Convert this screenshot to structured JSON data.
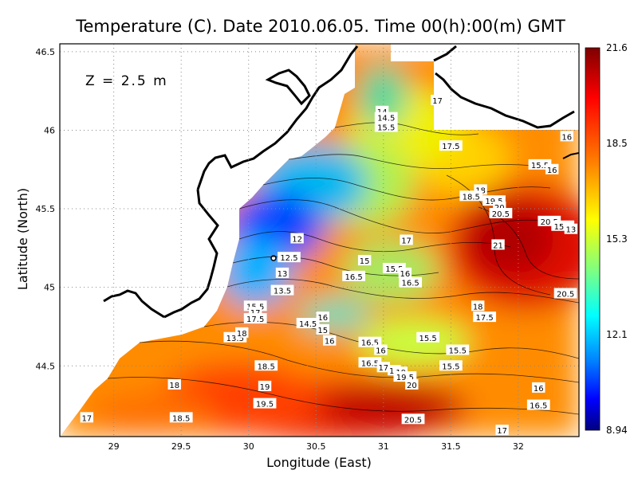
{
  "figure": {
    "title": "Temperature (C). Date 2010.06.05. Time 00(h):00(m) GMT",
    "depth_label": "Z = 2.5 m",
    "x_axis_label": "Longitude (East)",
    "y_axis_label": "Latitude (North)"
  },
  "map": {
    "lon_range": [
      28.6,
      32.45
    ],
    "lat_range": [
      44.05,
      46.55
    ],
    "lon_ticks": [
      "29",
      "29.5",
      "30",
      "30.5",
      "31",
      "31.5",
      "32"
    ],
    "lat_ticks": [
      "44.5",
      "45",
      "45.5",
      "46",
      "46.5"
    ],
    "grid": true
  },
  "colorbar": {
    "labels": [
      "21.6",
      "18.5",
      "15.3",
      "12.1",
      "8.94"
    ],
    "min": 8.94,
    "max": 21.6,
    "colors": [
      "#00007f",
      "#0000ff",
      "#0080ff",
      "#00ffff",
      "#80ff80",
      "#ffff00",
      "#ff8000",
      "#ff0000",
      "#7f0000"
    ]
  },
  "contour_labels": [
    {
      "text": "17",
      "lon": 31.4,
      "lat": 46.19
    },
    {
      "text": "14",
      "lon": 30.99,
      "lat": 46.12
    },
    {
      "text": "14.5",
      "lon": 31.02,
      "lat": 46.08
    },
    {
      "text": "15.5",
      "lon": 31.02,
      "lat": 46.02
    },
    {
      "text": "17.5",
      "lon": 31.5,
      "lat": 45.9
    },
    {
      "text": "16",
      "lon": 32.36,
      "lat": 45.96
    },
    {
      "text": "15.5",
      "lon": 32.16,
      "lat": 45.78
    },
    {
      "text": "16",
      "lon": 32.25,
      "lat": 45.75
    },
    {
      "text": "18",
      "lon": 31.72,
      "lat": 45.62
    },
    {
      "text": "18.5",
      "lon": 31.65,
      "lat": 45.58
    },
    {
      "text": "19.5",
      "lon": 31.82,
      "lat": 45.55
    },
    {
      "text": "20",
      "lon": 31.86,
      "lat": 45.51
    },
    {
      "text": "20.5",
      "lon": 31.87,
      "lat": 45.47
    },
    {
      "text": "20.5",
      "lon": 32.23,
      "lat": 45.42
    },
    {
      "text": "15.5",
      "lon": 32.33,
      "lat": 45.39
    },
    {
      "text": "13",
      "lon": 32.39,
      "lat": 45.37
    },
    {
      "text": "21",
      "lon": 31.85,
      "lat": 45.27
    },
    {
      "text": "17",
      "lon": 31.17,
      "lat": 45.3
    },
    {
      "text": "12",
      "lon": 30.36,
      "lat": 45.31
    },
    {
      "text": "12.5",
      "lon": 30.3,
      "lat": 45.19
    },
    {
      "text": "15",
      "lon": 30.86,
      "lat": 45.17
    },
    {
      "text": "15.5",
      "lon": 31.08,
      "lat": 45.12
    },
    {
      "text": "16",
      "lon": 31.16,
      "lat": 45.09
    },
    {
      "text": "13",
      "lon": 30.25,
      "lat": 45.09
    },
    {
      "text": "16.5",
      "lon": 30.78,
      "lat": 45.07
    },
    {
      "text": "16.5",
      "lon": 31.2,
      "lat": 45.03
    },
    {
      "text": "13.5",
      "lon": 30.25,
      "lat": 44.98
    },
    {
      "text": "20.5",
      "lon": 32.35,
      "lat": 44.96
    },
    {
      "text": "15.5",
      "lon": 30.05,
      "lat": 44.88
    },
    {
      "text": "17",
      "lon": 30.05,
      "lat": 44.84
    },
    {
      "text": "17.5",
      "lon": 30.05,
      "lat": 44.8
    },
    {
      "text": "18",
      "lon": 31.7,
      "lat": 44.88
    },
    {
      "text": "17.5",
      "lon": 31.75,
      "lat": 44.81
    },
    {
      "text": "16",
      "lon": 30.55,
      "lat": 44.81
    },
    {
      "text": "14.5",
      "lon": 30.44,
      "lat": 44.77
    },
    {
      "text": "15",
      "lon": 30.55,
      "lat": 44.73
    },
    {
      "text": "13.5",
      "lon": 29.9,
      "lat": 44.68
    },
    {
      "text": "18",
      "lon": 29.95,
      "lat": 44.71
    },
    {
      "text": "16",
      "lon": 30.6,
      "lat": 44.66
    },
    {
      "text": "16.5",
      "lon": 30.9,
      "lat": 44.65
    },
    {
      "text": "15.5",
      "lon": 31.33,
      "lat": 44.68
    },
    {
      "text": "16",
      "lon": 30.98,
      "lat": 44.6
    },
    {
      "text": "15.5",
      "lon": 31.55,
      "lat": 44.6
    },
    {
      "text": "16.5",
      "lon": 30.9,
      "lat": 44.52
    },
    {
      "text": "15.5",
      "lon": 31.5,
      "lat": 44.5
    },
    {
      "text": "17",
      "lon": 31.0,
      "lat": 44.49
    },
    {
      "text": "18",
      "lon": 31.08,
      "lat": 44.47
    },
    {
      "text": "18.5",
      "lon": 30.13,
      "lat": 44.5
    },
    {
      "text": "19",
      "lon": 31.13,
      "lat": 44.46
    },
    {
      "text": "19.5",
      "lon": 31.16,
      "lat": 44.43
    },
    {
      "text": "20",
      "lon": 31.21,
      "lat": 44.38
    },
    {
      "text": "18",
      "lon": 29.45,
      "lat": 44.38
    },
    {
      "text": "19",
      "lon": 30.12,
      "lat": 44.37
    },
    {
      "text": "16",
      "lon": 32.15,
      "lat": 44.36
    },
    {
      "text": "19.5",
      "lon": 30.12,
      "lat": 44.26
    },
    {
      "text": "16.5",
      "lon": 32.15,
      "lat": 44.25
    },
    {
      "text": "17",
      "lon": 28.8,
      "lat": 44.17
    },
    {
      "text": "18.5",
      "lon": 29.5,
      "lat": 44.17
    },
    {
      "text": "20.5",
      "lon": 31.22,
      "lat": 44.16
    },
    {
      "text": "17",
      "lon": 31.88,
      "lat": 44.09
    }
  ]
}
